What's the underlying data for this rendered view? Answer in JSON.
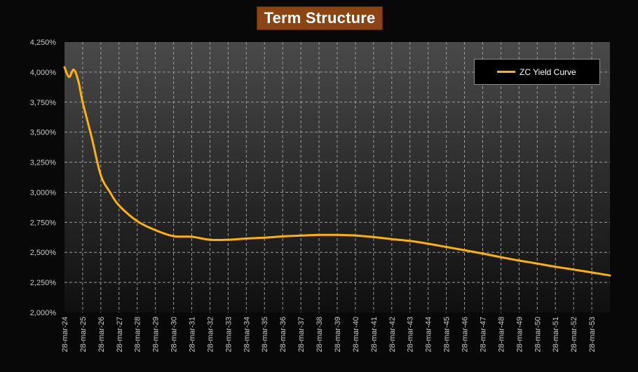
{
  "chart_data": {
    "type": "line",
    "title": "Term Structure",
    "xlabel": "",
    "ylabel": "",
    "ylim": [
      2.0,
      4.25
    ],
    "y_ticks": [
      "2,000%",
      "2,250%",
      "2,500%",
      "2,750%",
      "3,000%",
      "3,250%",
      "3,500%",
      "3,750%",
      "4,000%",
      "4,250%"
    ],
    "x_ticks": [
      "28-mar-24",
      "28-mar-25",
      "28-mar-26",
      "28-mar-27",
      "28-mar-28",
      "28-mar-29",
      "28-mar-30",
      "28-mar-31",
      "28-mar-32",
      "28-mar-33",
      "28-mar-34",
      "28-mar-35",
      "28-mar-36",
      "28-mar-37",
      "28-mar-38",
      "28-mar-39",
      "28-mar-40",
      "28-mar-41",
      "28-mar-42",
      "28-mar-43",
      "28-mar-44",
      "28-mar-45",
      "28-mar-46",
      "28-mar-47",
      "28-mar-48",
      "28-mar-49",
      "28-mar-50",
      "28-mar-51",
      "28-mar-52",
      "28-mar-53"
    ],
    "grid": true,
    "legend_position": "top-right",
    "colors": {
      "line": "#FFB300",
      "title_bg": "#8B4513"
    },
    "series": [
      {
        "name": "ZC Yield Curve",
        "points": [
          [
            "28-mar-24",
            4.04
          ],
          [
            "28-jun-24",
            3.96
          ],
          [
            "28-sep-24",
            4.02
          ],
          [
            "28-dec-24",
            3.93
          ],
          [
            "28-mar-25",
            3.75
          ],
          [
            "28-sep-25",
            3.45
          ],
          [
            "28-mar-26",
            3.14
          ],
          [
            "28-sep-26",
            3.0
          ],
          [
            "28-mar-27",
            2.89
          ],
          [
            "28-mar-28",
            2.76
          ],
          [
            "28-mar-29",
            2.685
          ],
          [
            "28-mar-30",
            2.635
          ],
          [
            "28-mar-31",
            2.63
          ],
          [
            "28-mar-32",
            2.605
          ],
          [
            "28-mar-33",
            2.605
          ],
          [
            "28-mar-34",
            2.615
          ],
          [
            "28-mar-35",
            2.622
          ],
          [
            "28-mar-36",
            2.633
          ],
          [
            "28-mar-37",
            2.64
          ],
          [
            "28-mar-38",
            2.645
          ],
          [
            "28-mar-39",
            2.645
          ],
          [
            "28-mar-40",
            2.64
          ],
          [
            "28-mar-41",
            2.627
          ],
          [
            "28-mar-42",
            2.61
          ],
          [
            "28-mar-43",
            2.595
          ],
          [
            "28-mar-44",
            2.572
          ],
          [
            "28-mar-45",
            2.545
          ],
          [
            "28-mar-46",
            2.518
          ],
          [
            "28-mar-47",
            2.49
          ],
          [
            "28-mar-48",
            2.46
          ],
          [
            "28-mar-49",
            2.432
          ],
          [
            "28-mar-50",
            2.407
          ],
          [
            "28-mar-51",
            2.38
          ],
          [
            "28-mar-52",
            2.357
          ],
          [
            "28-mar-53",
            2.333
          ],
          [
            "28-mar-54",
            2.308
          ]
        ]
      }
    ]
  }
}
